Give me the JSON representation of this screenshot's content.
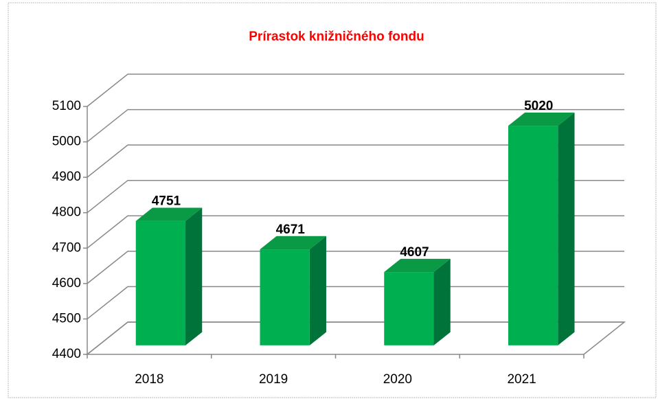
{
  "chart_data": {
    "type": "bar",
    "title": "Prírastok knižničného fondu",
    "categories": [
      "2018",
      "2019",
      "2020",
      "2021"
    ],
    "values": [
      4751,
      4671,
      4607,
      5020
    ],
    "color": "#00b050",
    "ylim": [
      4400,
      5100
    ],
    "yticks": [
      4400,
      4500,
      4600,
      4700,
      4800,
      4900,
      5000,
      5100
    ],
    "grid": true
  }
}
